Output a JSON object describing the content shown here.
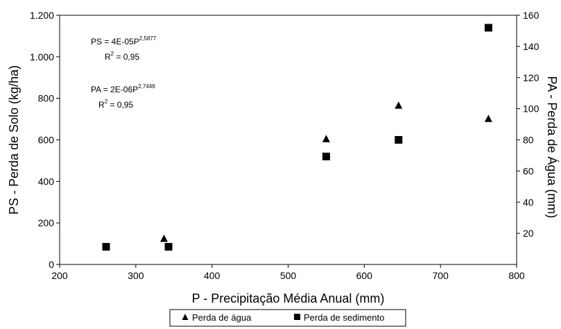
{
  "chart_data": {
    "type": "scatter",
    "xlabel": "P - Precipitação Média Anual (mm)",
    "ylabel": "PS - Perda de Solo (kg/ha)",
    "y2label": "PA - Perda de Água (mm)",
    "xlim": [
      200,
      800
    ],
    "ylim": [
      0,
      1200
    ],
    "y2lim": [
      0,
      160
    ],
    "x_ticks": [
      200,
      300,
      400,
      500,
      600,
      700,
      800
    ],
    "x_tick_labels": [
      "200",
      "300",
      "400",
      "500",
      "600",
      "700",
      "800"
    ],
    "y_ticks": [
      0,
      200,
      400,
      600,
      800,
      1000,
      1200
    ],
    "y_tick_labels": [
      "0",
      "200",
      "400",
      "600",
      "800",
      "1.000",
      "1.200"
    ],
    "y2_ticks": [
      20,
      40,
      60,
      80,
      100,
      120,
      140,
      160
    ],
    "y2_tick_labels": [
      "20",
      "40",
      "60",
      "80",
      "100",
      "120",
      "140",
      "160"
    ],
    "legend_position": "bottom",
    "series": [
      {
        "name": "Perda de água",
        "marker": "triangle",
        "axis": "right",
        "color": "#000000",
        "x": [
          337,
          550,
          645,
          763
        ],
        "y": [
          16.5,
          80.5,
          102,
          93.5
        ]
      },
      {
        "name": "Perda de sedimento",
        "marker": "square",
        "axis": "left",
        "color": "#000000",
        "x": [
          261,
          343,
          550,
          645,
          763
        ],
        "y": [
          85,
          85,
          520,
          600,
          1140
        ]
      }
    ],
    "annotations": [
      {
        "main": "PS = 4E-05P",
        "sup": "2,5877"
      },
      {
        "main": "R",
        "sup": "2",
        "tail": " = 0,95"
      },
      {
        "main": "PA = 2E-06P",
        "sup": "2,7449"
      },
      {
        "main": "R",
        "sup": "2",
        "tail": " = 0,95"
      }
    ]
  }
}
